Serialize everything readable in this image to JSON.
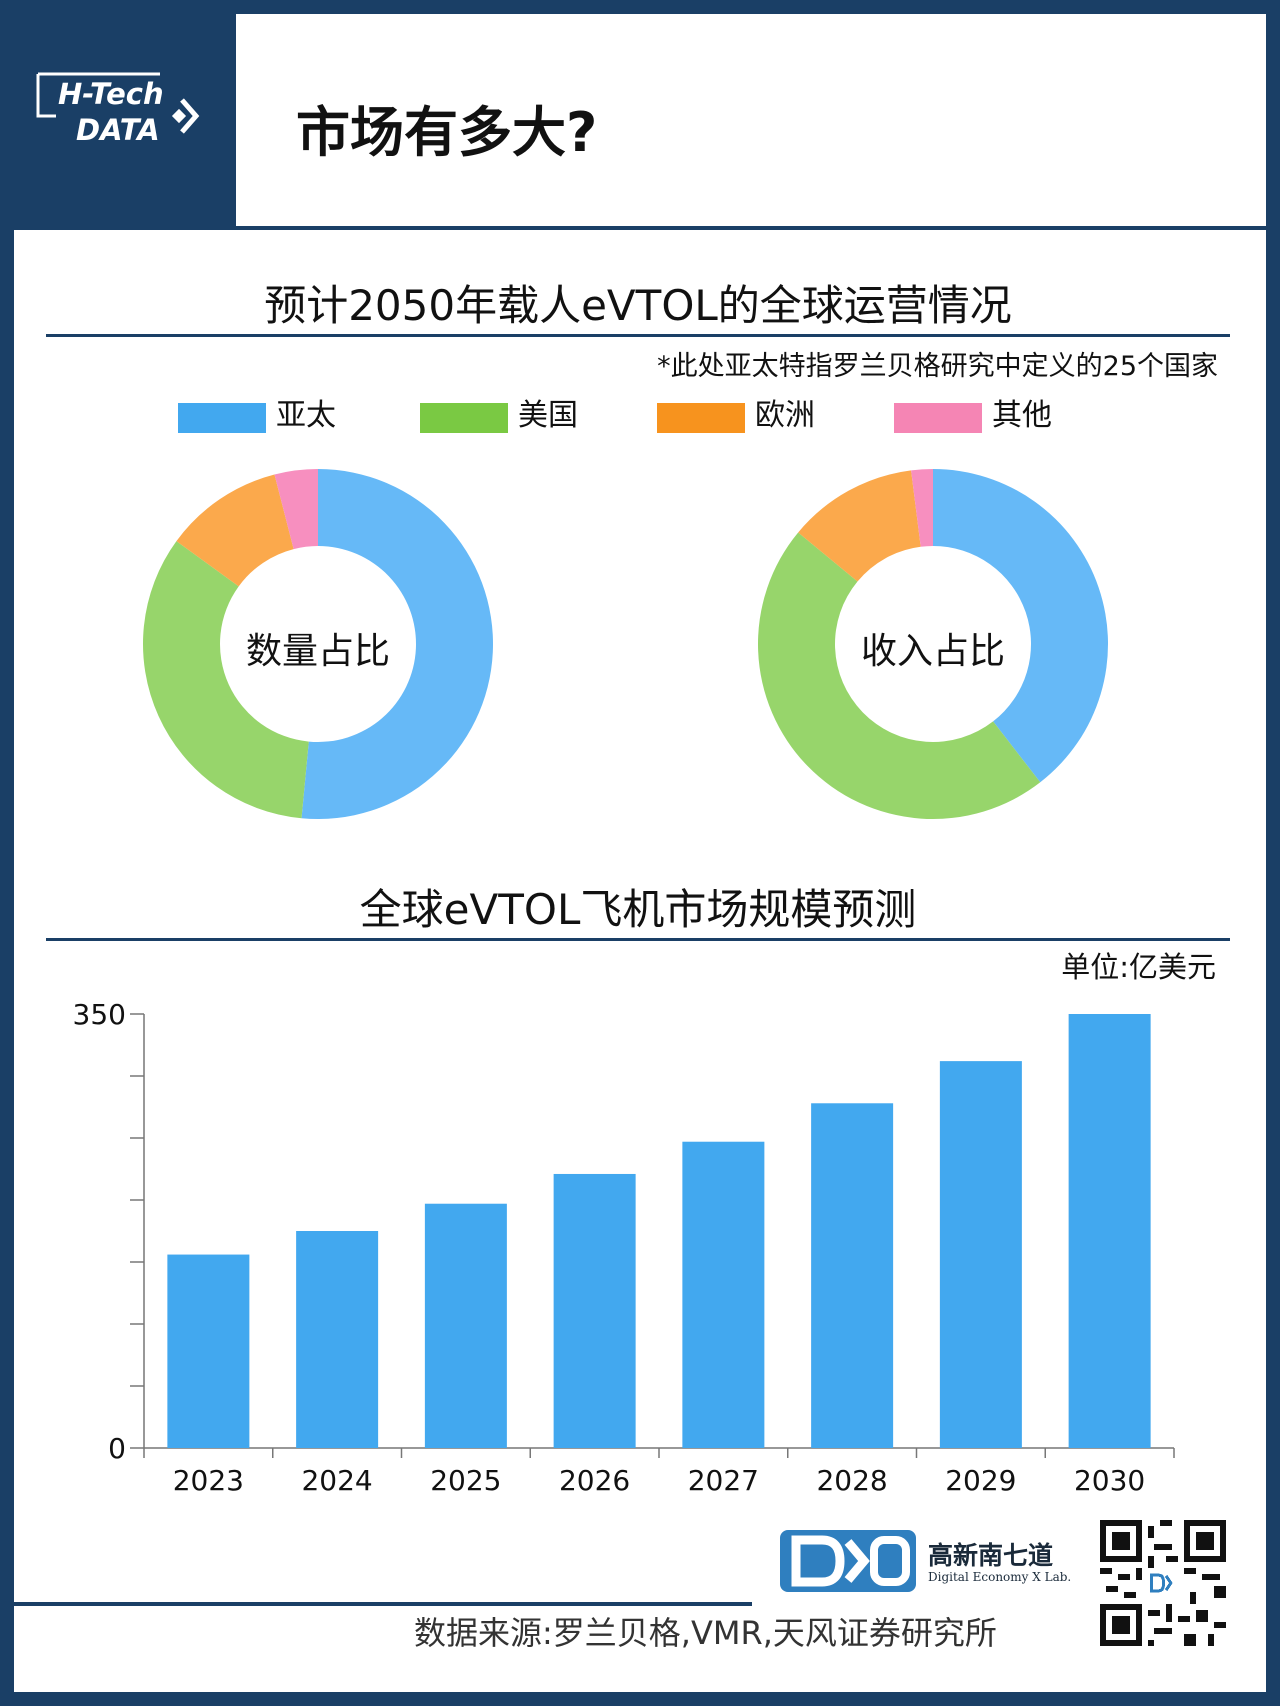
{
  "logo": {
    "line1": "H-Tech",
    "line2": "DATA"
  },
  "page_title": "市场有多大?",
  "section1": {
    "title": "预计2050年载人eVTOL的全球运营情况",
    "note": "*此处亚太特指罗兰贝格研究中定义的25个国家",
    "legend": [
      {
        "label": "亚太",
        "color": "#42a8ef"
      },
      {
        "label": "美国",
        "color": "#7ac943"
      },
      {
        "label": "欧洲",
        "color": "#f7931e"
      },
      {
        "label": "其他",
        "color": "#f585b4"
      }
    ]
  },
  "chart_data": [
    {
      "type": "pie",
      "center_label": "数量占比",
      "categories": [
        "亚太",
        "美国",
        "欧洲",
        "其他"
      ],
      "values": [
        51.5,
        33.5,
        11,
        4
      ],
      "colors": [
        "#66b9f7",
        "#97d56b",
        "#fba94c",
        "#f78fbf"
      ]
    },
    {
      "type": "pie",
      "center_label": "收入占比",
      "categories": [
        "亚太",
        "美国",
        "欧洲",
        "其他"
      ],
      "values": [
        39.5,
        46.5,
        12,
        2
      ],
      "colors": [
        "#66b9f7",
        "#97d56b",
        "#fba94c",
        "#f78fbf"
      ]
    },
    {
      "type": "bar",
      "title": "全球eVTOL飞机市场规模预测",
      "unit": "单位:亿美元",
      "categories": [
        "2023",
        "2024",
        "2025",
        "2026",
        "2027",
        "2028",
        "2029",
        "2030"
      ],
      "values": [
        156,
        175,
        197,
        221,
        247,
        278,
        312,
        350
      ],
      "ylim": [
        0,
        350
      ],
      "yticks": [
        0,
        350
      ],
      "color": "#42a8ef"
    }
  ],
  "footer": {
    "source": "数据来源:罗兰贝格,VMR,天风证券研究所",
    "brand_name": "高新南七道",
    "brand_sub": "Digital Economy X Lab."
  }
}
